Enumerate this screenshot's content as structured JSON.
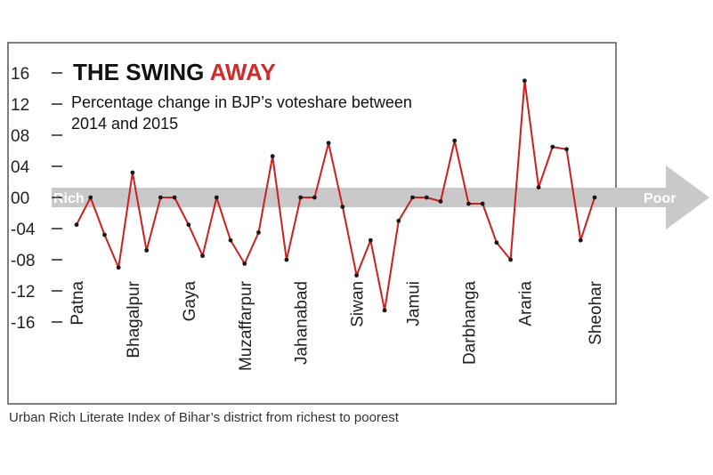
{
  "title": {
    "part1": "THE SWING ",
    "part2": "AWAY"
  },
  "subtitle": {
    "line1": "Percentage change in BJP’s voteshare between",
    "line2": "2014 and 2015"
  },
  "arrow": {
    "left_label": "Rich",
    "right_label": "Poor"
  },
  "footer": "Urban Rich Literate Index of Bihar’s district from richest to poorest",
  "colors": {
    "line": "#cc1f1f",
    "dot": "#1a1a1a",
    "arrow": "#c9c9c9",
    "frame": "#555555",
    "accent": "#d42a2a"
  },
  "chart_data": {
    "type": "line",
    "y_tick_labels": [
      "16",
      "12",
      "08",
      "04",
      "00",
      "-04",
      "-08",
      "-12",
      "-16"
    ],
    "y_tick_values": [
      16,
      12,
      8,
      4,
      0,
      -4,
      -8,
      -12,
      -16
    ],
    "ylim": [
      -16,
      16
    ],
    "category_labels": [
      {
        "index": 0,
        "label": "Patna"
      },
      {
        "index": 4,
        "label": "Bhagalpur"
      },
      {
        "index": 8,
        "label": "Gaya"
      },
      {
        "index": 12,
        "label": "Muzaffarpur"
      },
      {
        "index": 16,
        "label": "Jahanabad"
      },
      {
        "index": 20,
        "label": "Siwan"
      },
      {
        "index": 24,
        "label": "Jamui"
      },
      {
        "index": 28,
        "label": "Darbhanga"
      },
      {
        "index": 32,
        "label": "Araria"
      },
      {
        "index": 37,
        "label": "Sheohar"
      }
    ],
    "series": [
      {
        "values": [
          -3.5,
          0,
          -4.8,
          -9,
          3.2,
          -6.8,
          0,
          0,
          -3.5,
          -7.5,
          0,
          -5.5,
          -8.5,
          -4.5,
          5.3,
          -8,
          0,
          0,
          7,
          -1.2,
          -10,
          -5.5,
          -14.5,
          -3,
          0,
          0,
          -0.5,
          7.3,
          -0.8,
          -0.8,
          -5.8,
          -8,
          15,
          1.3,
          6.5,
          6.2,
          -5.5,
          0
        ]
      }
    ]
  }
}
